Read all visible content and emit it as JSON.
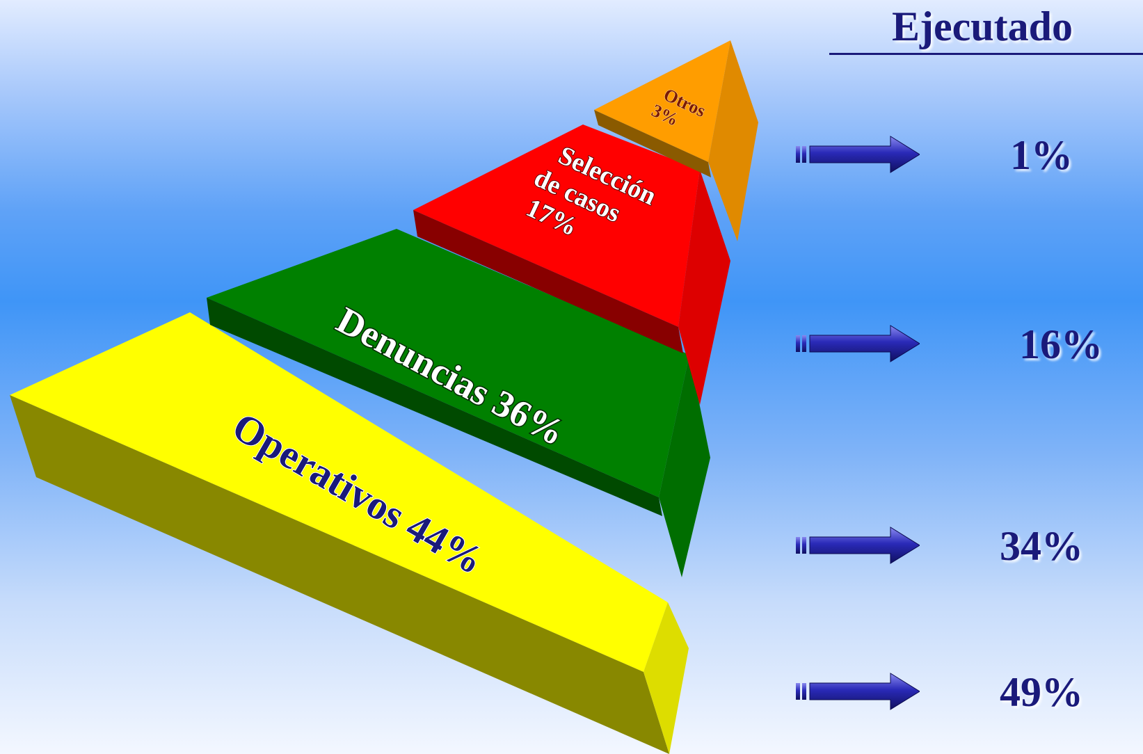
{
  "title": "Ejecutado",
  "chart_data": {
    "type": "pyramid",
    "segments": [
      {
        "label": "Otros",
        "value": 3,
        "value_text": "3%",
        "color": "#ff9d00",
        "side_color": "#e08a00",
        "bottom_color": "#8a5a00"
      },
      {
        "label": "Selección de casos",
        "value": 17,
        "value_text": "17%",
        "color": "#ff0000",
        "side_color": "#dd0000",
        "bottom_color": "#880000"
      },
      {
        "label": "Denuncias",
        "value": 36,
        "value_text": "36%",
        "color": "#008000",
        "side_color": "#006e00",
        "bottom_color": "#004a00"
      },
      {
        "label": "Operativos",
        "value": 44,
        "value_text": "44%",
        "color": "#ffff00",
        "side_color": "#dddd00",
        "bottom_color": "#888800"
      }
    ],
    "executed": [
      {
        "segment": "Otros",
        "value": 1,
        "value_text": "1%"
      },
      {
        "segment": "Selección de casos",
        "value": 16,
        "value_text": "16%"
      },
      {
        "segment": "Denuncias",
        "value": 34,
        "value_text": "34%"
      },
      {
        "segment": "Operativos",
        "value": 49,
        "value_text": "49%"
      }
    ]
  },
  "labels": {
    "otros_line1": "Otros",
    "otros_line2": "3%",
    "seleccion_line1": "Selección",
    "seleccion_line2": "de casos",
    "seleccion_line3": "17%",
    "denuncias": "Denuncias 36%",
    "operativos": "Operativos  44%"
  },
  "colors": {
    "text_dark": "#1a1a7a",
    "arrow": "#2a2ab8"
  }
}
